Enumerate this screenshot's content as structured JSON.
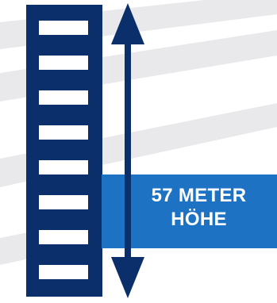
{
  "height_label": {
    "line1": "57 METER",
    "line2": "HÖHE"
  },
  "colors": {
    "tower": "#0b2f6b",
    "arrow": "#0b2f6b",
    "callout": "#1d72c3",
    "stripes": "#e9e9ec",
    "windows": "#ffffff"
  },
  "window_count": 8
}
